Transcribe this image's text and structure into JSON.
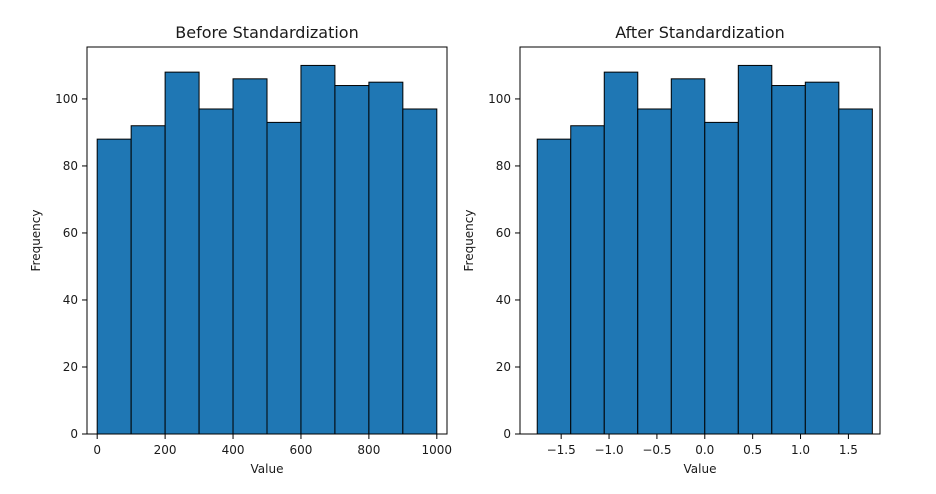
{
  "chart_data": [
    {
      "type": "bar",
      "title": "Before Standardization",
      "xlabel": "Value",
      "ylabel": "Frequency",
      "bin_edges": [
        0,
        100,
        200,
        300,
        400,
        500,
        600,
        700,
        800,
        900,
        1000
      ],
      "values": [
        88,
        92,
        108,
        97,
        106,
        93,
        110,
        104,
        105,
        97
      ],
      "xlim": [
        -30,
        1030
      ],
      "ylim": [
        0,
        115.5
      ],
      "xticks": [
        0,
        200,
        400,
        600,
        800,
        1000
      ],
      "xtick_labels": [
        "0",
        "200",
        "400",
        "600",
        "800",
        "1000"
      ],
      "yticks": [
        0,
        20,
        40,
        60,
        80,
        100
      ],
      "ytick_labels": [
        "0",
        "20",
        "40",
        "60",
        "80",
        "100"
      ],
      "bar_color": "#1f77b4",
      "edge_color": "#000000",
      "grid": false
    },
    {
      "type": "bar",
      "title": "After Standardization",
      "xlabel": "Value",
      "ylabel": "Frequency",
      "bin_edges": [
        -1.75,
        -1.4,
        -1.05,
        -0.7,
        -0.35,
        0.0,
        0.35,
        0.7,
        1.05,
        1.4,
        1.75
      ],
      "values": [
        88,
        92,
        108,
        97,
        106,
        93,
        110,
        104,
        105,
        97
      ],
      "xlim": [
        -1.93,
        1.83
      ],
      "ylim": [
        0,
        115.5
      ],
      "xticks": [
        -1.5,
        -1.0,
        -0.5,
        0.0,
        0.5,
        1.0,
        1.5
      ],
      "xtick_labels": [
        "−1.5",
        "−1.0",
        "−0.5",
        "0.0",
        "0.5",
        "1.0",
        "1.5"
      ],
      "yticks": [
        0,
        20,
        40,
        60,
        80,
        100
      ],
      "ytick_labels": [
        "0",
        "20",
        "40",
        "60",
        "80",
        "100"
      ],
      "bar_color": "#1f77b4",
      "edge_color": "#000000",
      "grid": false
    }
  ]
}
